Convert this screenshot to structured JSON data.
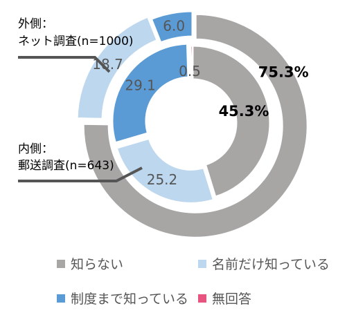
{
  "chart_data": {
    "type": "pie",
    "categories": [
      "知らない",
      "名前だけ知っている",
      "制度まで知っている",
      "無回答"
    ],
    "colors": [
      "#a8a5a5",
      "#bdd7ee",
      "#5b9bd5",
      "#e75480"
    ],
    "series": [
      {
        "name": "外側：ネット調査(n=1000)",
        "ring": "outer",
        "values": [
          75.3,
          18.7,
          6.0,
          0.0
        ],
        "labels": [
          "75.3%",
          "18.7",
          "6.0",
          ""
        ]
      },
      {
        "name": "内側：郵送調査(n=643)",
        "ring": "inner",
        "values": [
          45.3,
          25.2,
          29.1,
          0.5
        ],
        "labels": [
          "45.3%",
          "25.2",
          "29.1",
          "0.5"
        ]
      }
    ],
    "legend_position": "bottom"
  },
  "annotations": {
    "outer_line1": "外側：",
    "outer_line2": "ネット調査(n=1000)",
    "inner_line1": "内側：",
    "inner_line2": "郵送調査(n=643)"
  }
}
